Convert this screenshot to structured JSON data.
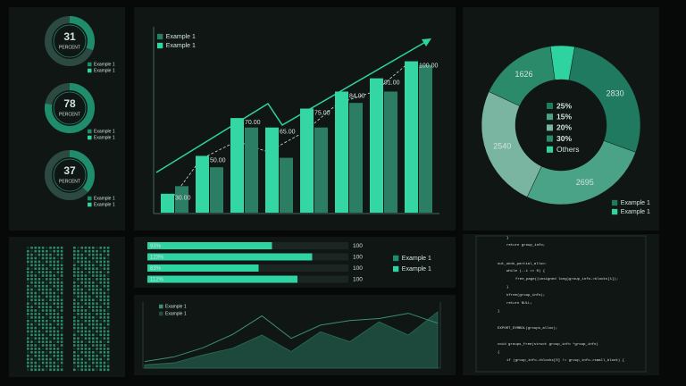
{
  "chart_data": [
    {
      "type": "gauge",
      "value": 31,
      "label": "PERCENT",
      "ylim": [
        0,
        100
      ],
      "color": "#1f8c6b",
      "track": "#2c4a41",
      "legend": [
        {
          "name": "Example 1",
          "color": "#1f8c6b"
        },
        {
          "name": "Example 1",
          "color": "#2ed3a2"
        }
      ]
    },
    {
      "type": "gauge",
      "value": 78,
      "label": "PERCENT",
      "ylim": [
        0,
        100
      ],
      "color": "#1f8c6b",
      "track": "#2c4a41",
      "legend": [
        {
          "name": "Example 1",
          "color": "#1f8c6b"
        },
        {
          "name": "Example 1",
          "color": "#2ed3a2"
        }
      ]
    },
    {
      "type": "gauge",
      "value": 37,
      "label": "PERCENT",
      "ylim": [
        0,
        100
      ],
      "color": "#1f8c6b",
      "track": "#2c4a41",
      "legend": [
        {
          "name": "Example 1",
          "color": "#1f8c6b"
        },
        {
          "name": "Example 1",
          "color": "#2ed3a2"
        }
      ]
    },
    {
      "type": "bar",
      "categories": [
        null,
        null,
        null,
        null,
        null,
        null,
        null,
        null
      ],
      "ylim": [
        20,
        105
      ],
      "series": [
        {
          "name": "Example 1",
          "color": "#2b7d64",
          "values": [
            34,
            44,
            65,
            49,
            65,
            78,
            84,
            98
          ]
        },
        {
          "name": "Example 1",
          "color": "#34d6a4",
          "values": [
            30,
            50,
            70,
            65,
            75,
            84,
            91,
            100
          ],
          "value_labels": [
            "30.00",
            "50.00",
            "70.00",
            "65.00",
            "75.00",
            "84.00",
            "91.00",
            "100.00"
          ]
        }
      ]
    },
    {
      "type": "pie",
      "donut": true,
      "categories": [
        "25%",
        "15%",
        "20%",
        "30%",
        "Others"
      ],
      "values": [
        2830,
        2695,
        2540,
        1626,
        500
      ],
      "value_labels": [
        "2830",
        "2695",
        "2540",
        "1626",
        null
      ],
      "colors": [
        "#1f7a5f",
        "#4aa386",
        "#7ab5a2",
        "#2a8a6a",
        "#2fd3a0"
      ],
      "legend": [
        {
          "name": "Example 1",
          "color": "#1f7a5f"
        },
        {
          "name": "Example 1",
          "color": "#2fd3a0"
        }
      ]
    },
    {
      "type": "progress",
      "values": [
        93,
        123,
        83,
        112
      ],
      "value_labels": [
        "93%",
        "123%",
        "83%",
        "112%"
      ],
      "targets": [
        100,
        100,
        100,
        100
      ],
      "xlim": [
        0,
        150
      ],
      "color": "#2ed3a2",
      "track": "#1b2622",
      "legend": [
        {
          "name": "Example 1",
          "color": "#1f8c6b"
        },
        {
          "name": "Example 1",
          "color": "#2ed3a2"
        }
      ]
    },
    {
      "type": "area",
      "ylim": [
        0,
        100
      ],
      "series": [
        {
          "name": "Example 1",
          "color": "#3a8f74",
          "values": [
            10,
            17,
            31,
            51,
            79,
            45,
            65,
            72,
            75,
            83,
            68
          ]
        },
        {
          "name": "Example 1",
          "color": "#1e4f40",
          "values": [
            5,
            8,
            20,
            30,
            50,
            25,
            55,
            40,
            70,
            50,
            85
          ]
        }
      ]
    }
  ],
  "code_panel": {
    "lines": [
      "}",
      "return group_info;",
      "out_undo_partial_alloc:",
      "while (--i >= 0) {",
      "free_page((unsigned long)group_info->blocks[i]);",
      "}",
      "kfree(group_info);",
      "return NULL;",
      "}",
      "EXPORT_SYMBOL(groups_alloc);",
      "void groups_free(struct group_info *group_info)",
      "{",
      "if (group_info->blocks[0] != group_info->small_block) {"
    ]
  }
}
